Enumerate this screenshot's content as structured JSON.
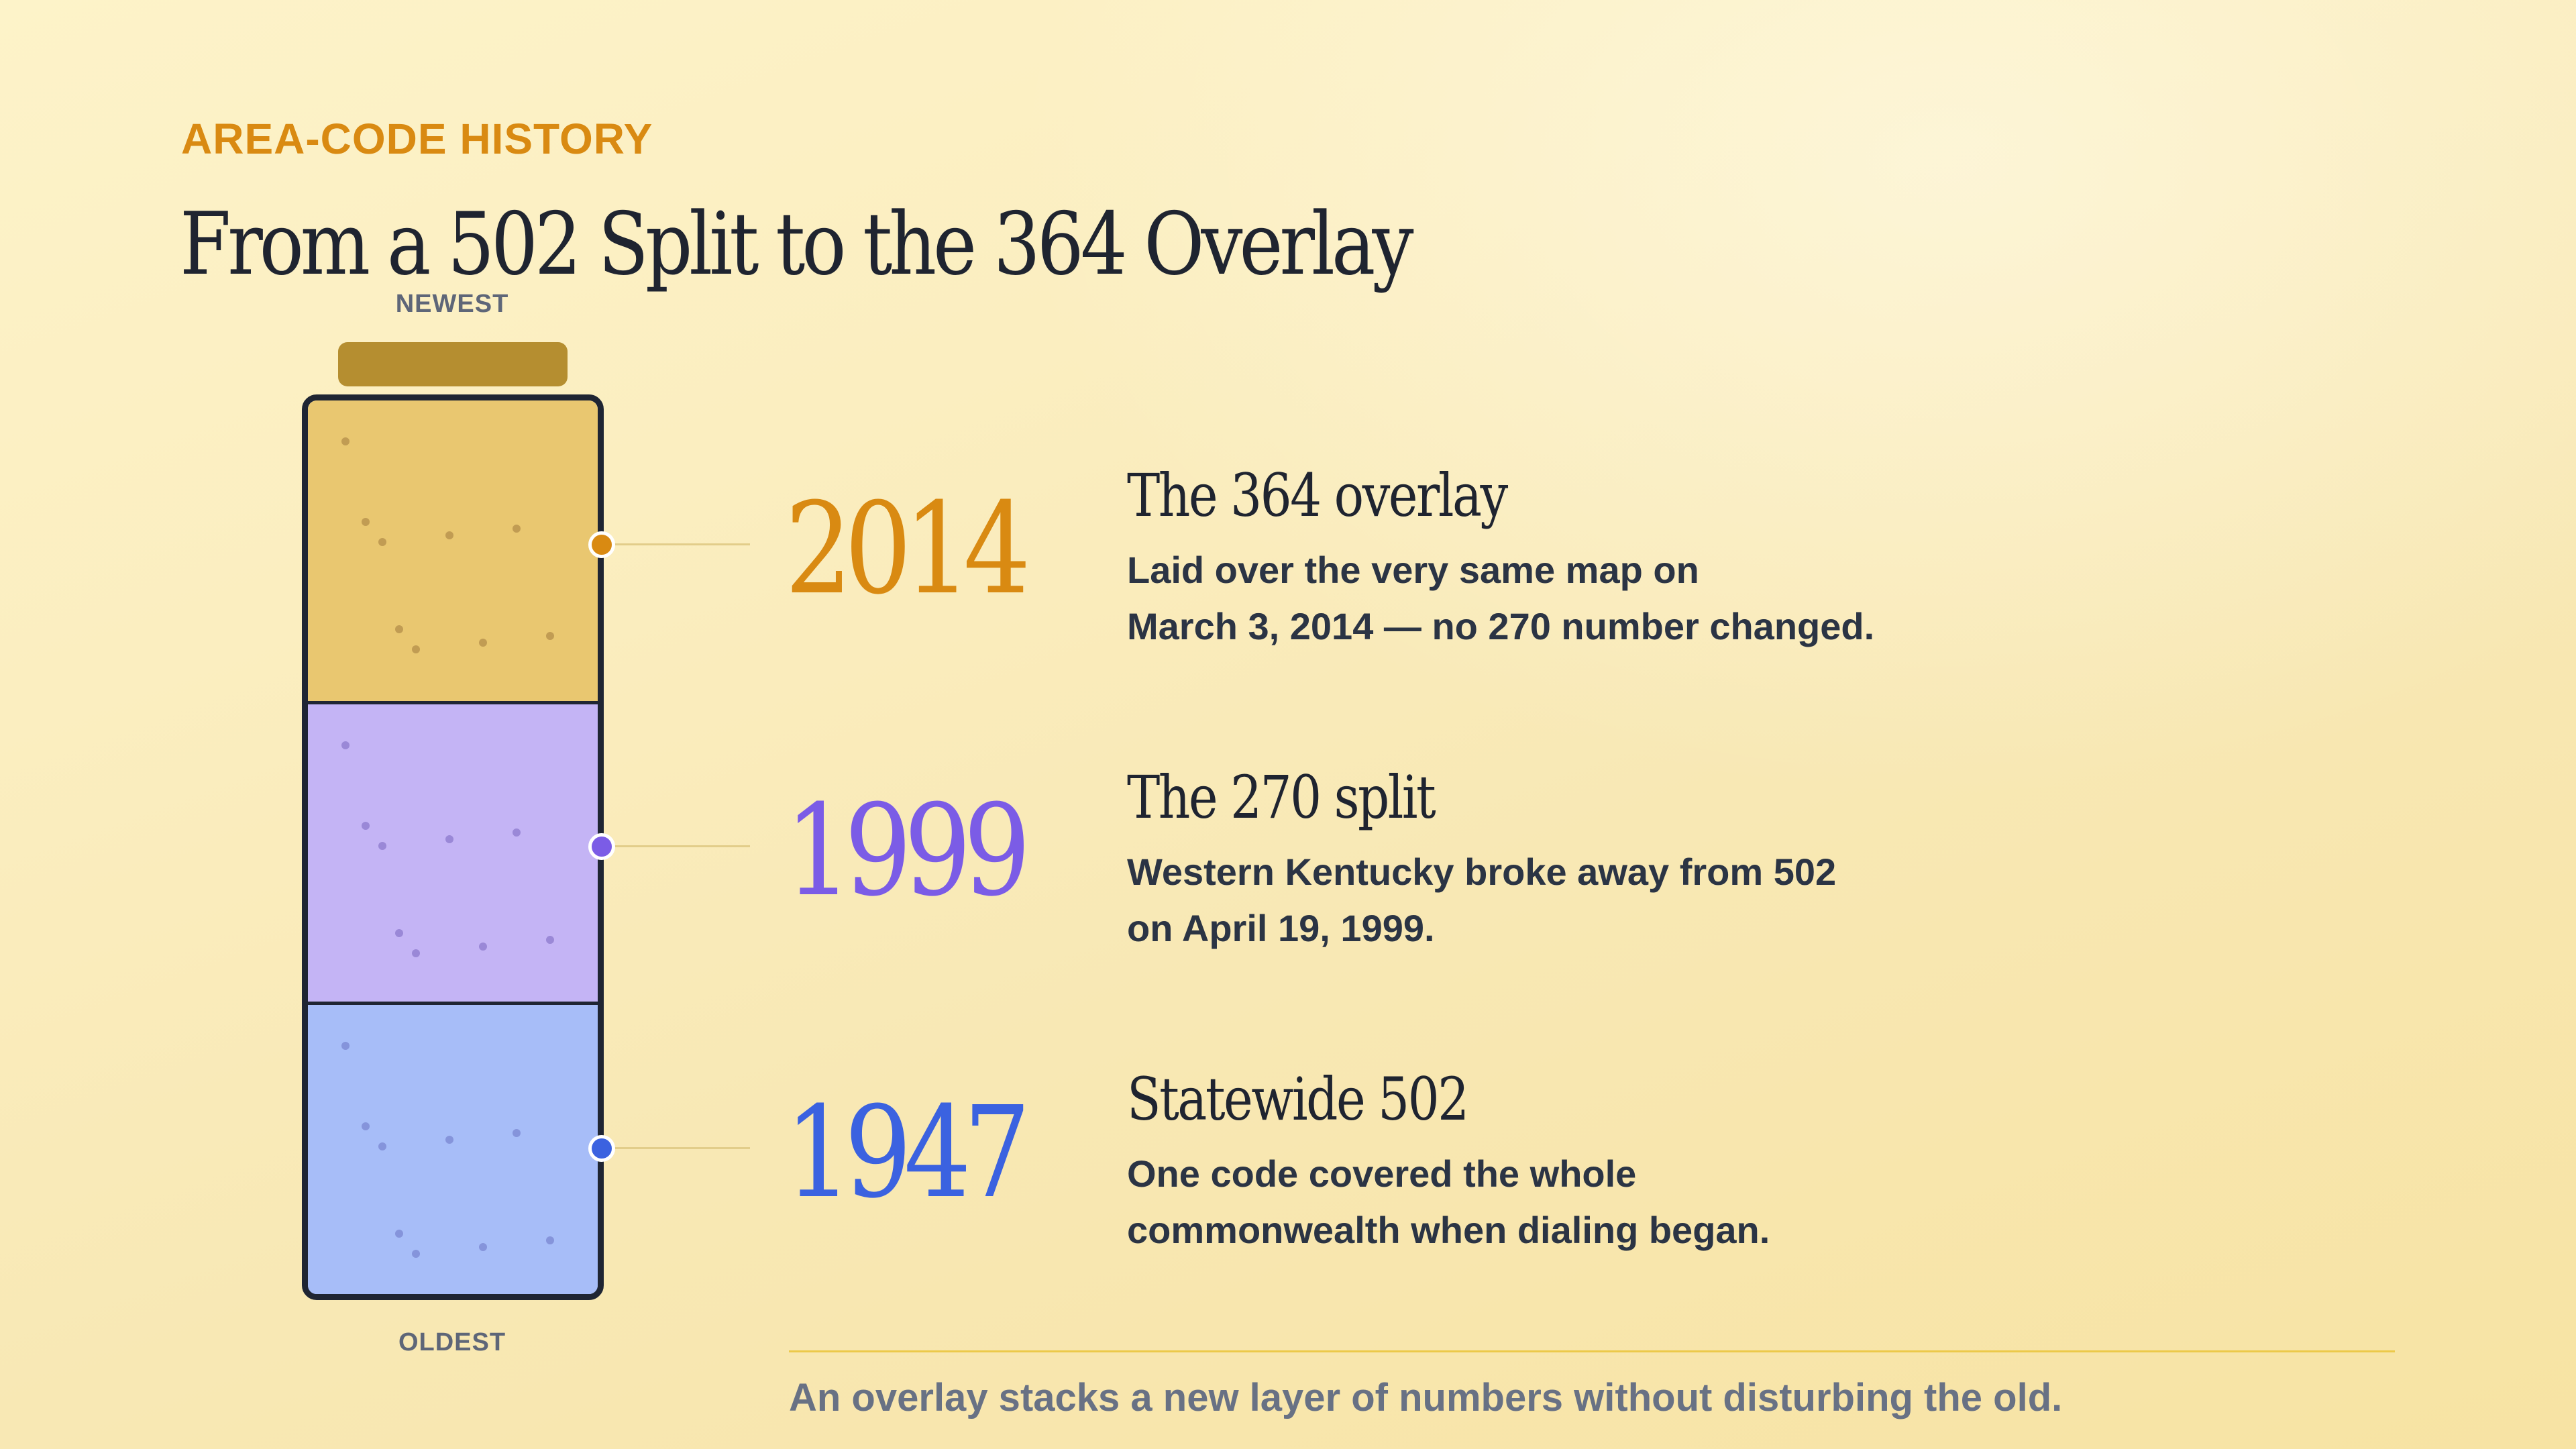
{
  "header": {
    "eyebrow": "AREA-CODE HISTORY",
    "title": "From a 502 Split to the 364 Overlay"
  },
  "jar": {
    "top_label": "NEWEST",
    "bottom_label": "OLDEST"
  },
  "colors": {
    "accent": "#d98a12",
    "layer_2014": "#e9c770",
    "layer_1999": "#c4b4f5",
    "layer_1947": "#a7bdf8",
    "year_2014": "#d98a12",
    "year_1999": "#7b5ce6",
    "year_1947": "#3b62e0"
  },
  "events": [
    {
      "year": "2014",
      "title": "The 364 overlay",
      "desc_line1": "Laid over the very same map on",
      "desc_line2": "March 3, 2014 — no 270 number changed."
    },
    {
      "year": "1999",
      "title": "The 270 split",
      "desc_line1": "Western Kentucky broke away from 502",
      "desc_line2": "on April 19, 1999."
    },
    {
      "year": "1947",
      "title": "Statewide 502",
      "desc_line1": "One code covered the whole",
      "desc_line2": "commonwealth when dialing began."
    }
  ],
  "footer": {
    "caption": "An overlay stacks a new layer of numbers without disturbing the old."
  }
}
